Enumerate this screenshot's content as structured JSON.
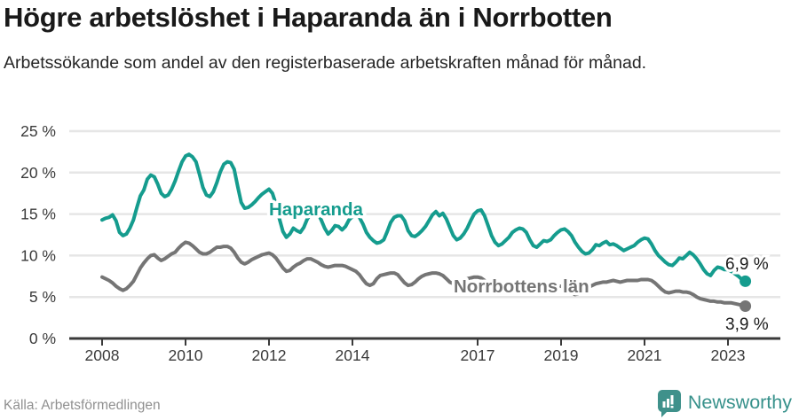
{
  "header": {
    "title": "Högre arbetslöshet i Haparanda än i Norrbotten",
    "subtitle": "Arbetssökande som andel av den registerbaserade arbetskraften månad för månad."
  },
  "footer": {
    "source": "Källa: Arbetsförmedlingen",
    "brand": "Newsworthy"
  },
  "colors": {
    "haparanda": "#159c8e",
    "norrbotten": "#757575",
    "grid": "#e6e6e6",
    "axis": "#3a3a3a",
    "tick_text": "#3a3a3a",
    "end_label_text": "#1a1a1a",
    "brand_teal": "#3f918b"
  },
  "chart_data": {
    "type": "line",
    "title": "Högre arbetslöshet i Haparanda än i Norrbotten",
    "subtitle": "Arbetssökande som andel av den registerbaserade arbetskraften månad för månad.",
    "x_monthly_start": "2008-01",
    "x_monthly_end": "2023-06",
    "ylim": [
      0,
      25
    ],
    "grid": true,
    "legend_position": "inline-labels",
    "y_ticks": [
      {
        "value": 25,
        "label": "25 %"
      },
      {
        "value": 20,
        "label": "20 %"
      },
      {
        "value": 15,
        "label": "15 %"
      },
      {
        "value": 10,
        "label": "10 %"
      },
      {
        "value": 5,
        "label": "5 %"
      },
      {
        "value": 0,
        "label": "0 %"
      }
    ],
    "x_ticks": [
      {
        "value": 2008,
        "label": "2008"
      },
      {
        "value": 2010,
        "label": "2010"
      },
      {
        "value": 2012,
        "label": "2012"
      },
      {
        "value": 2014,
        "label": "2014"
      },
      {
        "value": 2017,
        "label": "2017"
      },
      {
        "value": 2019,
        "label": "2019"
      },
      {
        "value": 2021,
        "label": "2021"
      },
      {
        "value": 2023,
        "label": "2023"
      }
    ],
    "series": [
      {
        "name": "Haparanda",
        "label": "Haparanda",
        "end_label": "6,9 %",
        "end_value": 6.9,
        "color_key": "haparanda",
        "values": [
          14.3,
          14.5,
          14.6,
          14.9,
          14.2,
          12.8,
          12.4,
          12.6,
          13.3,
          14.3,
          15.8,
          17.2,
          17.9,
          19.2,
          19.7,
          19.5,
          18.6,
          17.5,
          17.1,
          17.3,
          18.0,
          19.0,
          20.2,
          21.3,
          22.0,
          22.2,
          21.9,
          21.3,
          19.8,
          18.2,
          17.3,
          17.1,
          17.7,
          18.8,
          20.1,
          21.0,
          21.3,
          21.2,
          20.4,
          18.3,
          16.4,
          15.7,
          15.8,
          16.1,
          16.5,
          17.0,
          17.4,
          17.7,
          18.0,
          17.5,
          16.2,
          14.4,
          12.9,
          12.2,
          12.6,
          13.3,
          13.0,
          12.8,
          13.4,
          14.4,
          15.0,
          15.2,
          15.1,
          14.3,
          13.3,
          12.6,
          13.0,
          13.6,
          13.5,
          13.1,
          13.5,
          14.3,
          14.7,
          14.9,
          14.6,
          13.8,
          12.8,
          12.2,
          11.8,
          11.5,
          11.6,
          11.9,
          12.9,
          14.0,
          14.6,
          14.8,
          14.8,
          14.2,
          13.0,
          12.4,
          12.3,
          12.6,
          13.0,
          13.5,
          14.2,
          14.9,
          15.3,
          14.8,
          15.1,
          14.4,
          13.4,
          12.4,
          11.9,
          12.1,
          12.6,
          13.3,
          14.2,
          15.0,
          15.4,
          15.5,
          14.8,
          13.6,
          12.4,
          11.6,
          11.2,
          11.4,
          11.8,
          12.2,
          12.8,
          13.1,
          13.3,
          13.2,
          12.8,
          11.9,
          11.2,
          11.0,
          11.4,
          11.8,
          11.7,
          11.9,
          12.4,
          12.8,
          13.1,
          13.2,
          12.9,
          12.4,
          11.6,
          11.0,
          10.5,
          10.2,
          10.3,
          10.7,
          11.3,
          11.2,
          11.5,
          11.7,
          11.3,
          11.4,
          11.2,
          10.9,
          10.6,
          10.8,
          11.0,
          11.2,
          11.6,
          11.9,
          12.1,
          12.0,
          11.4,
          10.6,
          10.0,
          9.6,
          9.2,
          8.9,
          8.8,
          9.2,
          9.7,
          9.6,
          10.0,
          10.4,
          10.1,
          9.6,
          9.0,
          8.3,
          7.8,
          7.6,
          8.2,
          8.6,
          8.5,
          8.3,
          8.3,
          8.1,
          7.8,
          7.5,
          7.1,
          6.9
        ]
      },
      {
        "name": "Norrbottens län",
        "label": "Norrbottens län",
        "end_label": "3,9 %",
        "end_value": 3.9,
        "color_key": "norrbotten",
        "values": [
          7.4,
          7.2,
          7.0,
          6.7,
          6.3,
          6.0,
          5.8,
          6.0,
          6.4,
          6.9,
          7.7,
          8.5,
          9.1,
          9.6,
          10.0,
          10.1,
          9.7,
          9.4,
          9.6,
          9.9,
          10.2,
          10.4,
          10.9,
          11.3,
          11.6,
          11.5,
          11.2,
          10.8,
          10.4,
          10.2,
          10.2,
          10.4,
          10.7,
          11.0,
          11.0,
          11.1,
          11.1,
          10.9,
          10.4,
          9.7,
          9.2,
          9.0,
          9.2,
          9.5,
          9.7,
          9.9,
          10.1,
          10.2,
          10.3,
          10.1,
          9.7,
          9.1,
          8.5,
          8.1,
          8.2,
          8.6,
          8.9,
          9.1,
          9.4,
          9.6,
          9.6,
          9.4,
          9.2,
          8.9,
          8.7,
          8.6,
          8.7,
          8.8,
          8.8,
          8.8,
          8.7,
          8.5,
          8.3,
          8.1,
          7.7,
          7.1,
          6.6,
          6.4,
          6.6,
          7.2,
          7.6,
          7.7,
          7.8,
          7.9,
          7.9,
          7.7,
          7.2,
          6.7,
          6.4,
          6.5,
          6.8,
          7.2,
          7.5,
          7.7,
          7.8,
          7.9,
          7.9,
          7.8,
          7.6,
          7.2,
          6.8,
          6.6,
          6.7,
          6.9,
          7.1,
          7.2,
          7.3,
          7.4,
          7.4,
          7.3,
          7.0,
          6.6,
          6.2,
          6.0,
          6.1,
          6.3,
          6.5,
          6.6,
          6.7,
          6.8,
          6.8,
          6.6,
          6.3,
          5.9,
          5.6,
          5.5,
          5.6,
          5.8,
          6.0,
          6.1,
          6.2,
          6.3,
          6.3,
          6.1,
          5.8,
          5.5,
          5.3,
          5.4,
          5.6,
          5.9,
          6.2,
          6.4,
          6.6,
          6.7,
          6.8,
          6.8,
          6.9,
          7.0,
          6.9,
          6.8,
          6.9,
          7.0,
          7.0,
          7.0,
          7.0,
          7.1,
          7.1,
          7.1,
          7.0,
          6.7,
          6.3,
          5.9,
          5.6,
          5.5,
          5.6,
          5.7,
          5.7,
          5.6,
          5.6,
          5.5,
          5.3,
          5.0,
          4.8,
          4.7,
          4.6,
          4.5,
          4.5,
          4.4,
          4.4,
          4.3,
          4.3,
          4.3,
          4.2,
          4.1,
          4.0,
          3.9
        ]
      }
    ]
  }
}
